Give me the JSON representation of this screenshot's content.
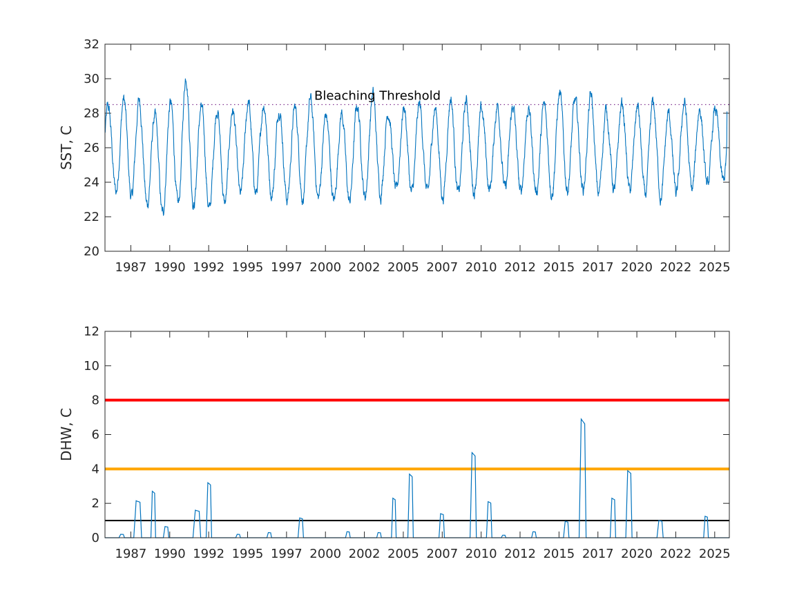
{
  "chart_data": [
    {
      "type": "line",
      "ylabel": "SST, C",
      "xlabel": "",
      "title": "",
      "xlim": [
        1985.0,
        2025.1
      ],
      "ylim": [
        20,
        32
      ],
      "yticks": [
        20,
        22,
        24,
        26,
        28,
        30,
        32
      ],
      "xtick_values": [
        1986.66,
        1989.16,
        1991.66,
        1994.16,
        1996.66,
        1999.16,
        2001.66,
        2004.16,
        2006.66,
        2009.16,
        2011.66,
        2014.16,
        2016.66,
        2019.16,
        2021.66,
        2024.16
      ],
      "xticklabels": [
        "1987",
        "1990",
        "1992",
        "1995",
        "1997",
        "2000",
        "2002",
        "2005",
        "2007",
        "2010",
        "2012",
        "2015",
        "2017",
        "2020",
        "2022",
        "2025"
      ],
      "threshold": {
        "value": 28.5,
        "label": "Bleaching Threshold",
        "label_x": 2002.5
      },
      "series": [
        {
          "color": "#0072BD",
          "annual_peaks": [
            28.5,
            29.1,
            29.0,
            28.0,
            28.9,
            30.6,
            28.4,
            28.6,
            28.4,
            28.9,
            28.8,
            28.6,
            28.5,
            29.0,
            28.0,
            28.3,
            28.7,
            29.4,
            28.3,
            28.6,
            28.7,
            28.5,
            29.2,
            28.9,
            28.3,
            28.7,
            28.6,
            28.5,
            28.6,
            29.4,
            28.8,
            29.2,
            28.3,
            28.8,
            28.6,
            28.8,
            28.1,
            28.9,
            28.5,
            28.4
          ],
          "annual_troughs": [
            23.5,
            22.8,
            22.9,
            21.8,
            21.9,
            22.7,
            22.2,
            22.1,
            23.0,
            22.9,
            23.4,
            22.7,
            22.9,
            22.9,
            22.8,
            22.5,
            22.8,
            23.1,
            23.2,
            23.1,
            23.1,
            23.0,
            22.8,
            23.3,
            23.3,
            23.5,
            23.1,
            23.2,
            23.3,
            23.2,
            23.7,
            23.0,
            23.2,
            23.5,
            22.9,
            23.1,
            22.8,
            23.3,
            23.3,
            23.8
          ],
          "start_value": 27.2,
          "end_value": 28.1
        }
      ]
    },
    {
      "type": "line",
      "ylabel": "DHW, C",
      "xlabel": "",
      "title": "",
      "xlim": [
        1985.0,
        2025.1
      ],
      "ylim": [
        0,
        12
      ],
      "yticks": [
        0,
        2,
        4,
        6,
        8,
        10,
        12
      ],
      "xtick_values": [
        1986.66,
        1989.16,
        1991.66,
        1994.16,
        1996.66,
        1999.16,
        2001.66,
        2004.16,
        2006.66,
        2009.16,
        2011.66,
        2014.16,
        2016.66,
        2019.16,
        2021.66,
        2024.16
      ],
      "xticklabels": [
        "1987",
        "1990",
        "1992",
        "1995",
        "1997",
        "2000",
        "2002",
        "2005",
        "2007",
        "2010",
        "2012",
        "2015",
        "2017",
        "2020",
        "2022",
        "2025"
      ],
      "reference_lines": [
        {
          "value": 8,
          "color": "#FF0000"
        },
        {
          "value": 4,
          "color": "#FFA500"
        },
        {
          "value": 1,
          "color": "#000000"
        }
      ],
      "series": [
        {
          "color": "#0072BD",
          "events": [
            {
              "x": [
                1985.9,
                1986.25
              ],
              "peak": 0.2
            },
            {
              "x": [
                1986.85,
                1987.35
              ],
              "peak": 2.15
            },
            {
              "x": [
                1987.95,
                1988.25
              ],
              "peak": 2.7
            },
            {
              "x": [
                1988.75,
                1989.1
              ],
              "peak": 0.65
            },
            {
              "x": [
                1990.65,
                1991.15
              ],
              "peak": 1.6
            },
            {
              "x": [
                1991.5,
                1991.85
              ],
              "peak": 3.2
            },
            {
              "x": [
                1993.4,
                1993.7
              ],
              "peak": 0.2
            },
            {
              "x": [
                1995.4,
                1995.7
              ],
              "peak": 0.3
            },
            {
              "x": [
                1997.4,
                1997.75
              ],
              "peak": 1.15
            },
            {
              "x": [
                2000.45,
                2000.75
              ],
              "peak": 0.35
            },
            {
              "x": [
                2002.45,
                2002.75
              ],
              "peak": 0.3
            },
            {
              "x": [
                2003.4,
                2003.7
              ],
              "peak": 2.3
            },
            {
              "x": [
                2004.45,
                2004.8
              ],
              "peak": 3.7
            },
            {
              "x": [
                2006.45,
                2006.8
              ],
              "peak": 1.4
            },
            {
              "x": [
                2008.45,
                2008.85
              ],
              "peak": 4.95
            },
            {
              "x": [
                2009.5,
                2009.85
              ],
              "peak": 2.1
            },
            {
              "x": [
                2010.45,
                2010.75
              ],
              "peak": 0.15
            },
            {
              "x": [
                2012.4,
                2012.7
              ],
              "peak": 0.35
            },
            {
              "x": [
                2014.45,
                2014.8
              ],
              "peak": 0.95
            },
            {
              "x": [
                2015.45,
                2015.9
              ],
              "peak": 6.9
            },
            {
              "x": [
                2017.45,
                2017.8
              ],
              "peak": 2.3
            },
            {
              "x": [
                2018.45,
                2018.85
              ],
              "peak": 3.9
            },
            {
              "x": [
                2020.45,
                2020.85
              ],
              "peak": 1.0
            },
            {
              "x": [
                2023.45,
                2023.75
              ],
              "peak": 1.25
            }
          ]
        }
      ]
    }
  ]
}
